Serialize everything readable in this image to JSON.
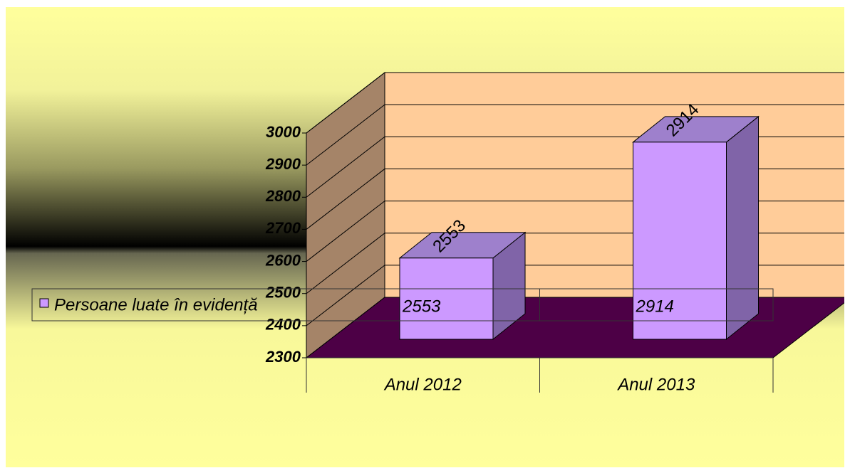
{
  "chart_data": {
    "type": "bar3d",
    "categories": [
      "Anul 2012",
      "Anul 2013"
    ],
    "series": [
      {
        "name": "Persoane luate în evidență",
        "color": "#cc99ff",
        "values": [
          2553,
          2914
        ]
      }
    ],
    "ylim": [
      2300,
      3000
    ],
    "yticks": [
      2300,
      2400,
      2500,
      2600,
      2700,
      2800,
      2900,
      3000
    ],
    "grid": true,
    "wall_color": "#ffcc99",
    "floor_color": "#4d0046"
  }
}
